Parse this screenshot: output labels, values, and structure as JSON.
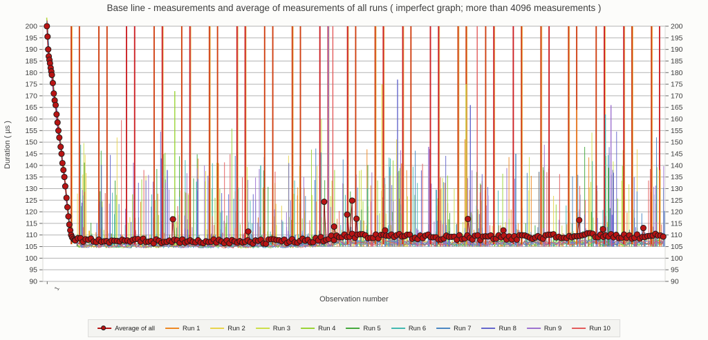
{
  "chart_data": {
    "type": "line",
    "title": "Base line - measurements and average of measurements of all runs ( imperfect graph; more than 4096 measurements )",
    "xlabel": "Observation number",
    "ylabel": "Duration ( µs )",
    "ylim": [
      90,
      200
    ],
    "ytick_step": 5,
    "yticks": [
      90,
      95,
      100,
      105,
      110,
      115,
      120,
      125,
      130,
      135,
      140,
      145,
      150,
      155,
      160,
      165,
      170,
      175,
      180,
      185,
      190,
      195,
      200
    ],
    "y_axis_sides": "both",
    "grid": "horizontal",
    "first_x_tick_label": "1",
    "legend_position": "bottom",
    "legend": [
      {
        "label": "Average of all",
        "color": "#b81414",
        "marker": "circle"
      },
      {
        "label": "Run 1",
        "color": "#ee8822"
      },
      {
        "label": "Run 2",
        "color": "#e8d44c"
      },
      {
        "label": "Run 3",
        "color": "#ccdf4a"
      },
      {
        "label": "Run 4",
        "color": "#99d435"
      },
      {
        "label": "Run 5",
        "color": "#44a83c"
      },
      {
        "label": "Run 6",
        "color": "#42b8b0"
      },
      {
        "label": "Run 7",
        "color": "#4a86c2"
      },
      {
        "label": "Run 8",
        "color": "#6466cc"
      },
      {
        "label": "Run 9",
        "color": "#9d72d0"
      },
      {
        "label": "Run 10",
        "color": "#e35b5b"
      }
    ],
    "average": {
      "color": "#b81414",
      "line_color": "#8d0f0f",
      "marker_stroke": "#1a1a1a",
      "descent": [
        [
          0.0065,
          200
        ],
        [
          0.0075,
          195.5
        ],
        [
          0.0085,
          190
        ],
        [
          0.0095,
          187
        ],
        [
          0.0105,
          185.5
        ],
        [
          0.0115,
          184
        ],
        [
          0.0125,
          182
        ],
        [
          0.0135,
          180.5
        ],
        [
          0.0145,
          179
        ],
        [
          0.016,
          175.5
        ],
        [
          0.0175,
          171
        ],
        [
          0.019,
          168
        ],
        [
          0.0205,
          166
        ],
        [
          0.022,
          162
        ],
        [
          0.0235,
          158.5
        ],
        [
          0.025,
          155
        ],
        [
          0.0265,
          152
        ],
        [
          0.0285,
          148
        ],
        [
          0.03,
          145
        ],
        [
          0.0315,
          141
        ],
        [
          0.033,
          138
        ],
        [
          0.0345,
          135
        ],
        [
          0.036,
          131
        ],
        [
          0.038,
          126
        ],
        [
          0.0395,
          122
        ],
        [
          0.041,
          118
        ],
        [
          0.0425,
          114.5
        ],
        [
          0.044,
          112
        ],
        [
          0.0455,
          110
        ],
        [
          0.047,
          109
        ],
        [
          0.049,
          108.3
        ],
        [
          0.051,
          107.8
        ]
      ],
      "baseline_trend": [
        [
          0.052,
          107.6
        ],
        [
          0.15,
          107.4
        ],
        [
          0.25,
          107.3
        ],
        [
          0.35,
          107.2
        ],
        [
          0.42,
          107.6
        ],
        [
          0.46,
          108.6
        ],
        [
          0.5,
          109.8
        ],
        [
          0.54,
          109.6
        ],
        [
          0.6,
          109.2
        ],
        [
          0.68,
          108.8
        ],
        [
          0.75,
          108.9
        ],
        [
          0.82,
          109.2
        ],
        [
          0.88,
          109.8
        ],
        [
          0.93,
          109.3
        ],
        [
          1.0,
          109.8
        ]
      ],
      "baseline_step": 0.0042,
      "baseline_jitter": 2.2,
      "bumps": [
        [
          0.209,
          116.8
        ],
        [
          0.33,
          111.5
        ],
        [
          0.452,
          124.3
        ],
        [
          0.468,
          113.6
        ],
        [
          0.489,
          118.8
        ],
        [
          0.497,
          124.8
        ],
        [
          0.504,
          117.0
        ],
        [
          0.55,
          112.0
        ],
        [
          0.683,
          116.9
        ],
        [
          0.74,
          112.0
        ],
        [
          0.862,
          116.4
        ],
        [
          0.9,
          112.5
        ],
        [
          0.965,
          113.0
        ]
      ]
    },
    "runs_noise": {
      "seed": 42,
      "x_start": 0.054,
      "baseline_min": 104.5,
      "baseline_max": 106.9,
      "baseline_step": 0.004,
      "spikes_per_run": 60,
      "spike_base": 110,
      "spike_range": 30,
      "spike_power": 3,
      "mid_spikes_per_run": 10,
      "mid_min": 126,
      "mid_range": 22,
      "high_spikes_per_run": 3,
      "high_min": 138,
      "high_range": 22,
      "descent_spread": 0.08
    },
    "tall_spikes": {
      "first": 0.0456,
      "period": 0.0444,
      "pair_gap": 0.0131,
      "pairs": 22,
      "top_value": 200,
      "base_value": 106,
      "color_a": "#d04012",
      "color_b": "#cc2024",
      "edge_color": "#e9b44a"
    },
    "notable_spikes": [
      {
        "x": 0.212,
        "run": 4,
        "value": 172
      },
      {
        "x": 0.19,
        "run": 8,
        "value": 143
      },
      {
        "x": 0.2,
        "run": 8,
        "value": 138
      },
      {
        "x": 0.247,
        "run": 6,
        "value": 133
      },
      {
        "x": 0.35,
        "run": 6,
        "value": 140
      },
      {
        "x": 0.459,
        "run": 9,
        "value": 200,
        "full": true
      },
      {
        "x": 0.466,
        "run": 10,
        "value": 200,
        "full": true
      },
      {
        "x": 0.545,
        "run": 2,
        "value": 175
      },
      {
        "x": 0.57,
        "run": 8,
        "value": 177
      },
      {
        "x": 0.62,
        "run": 9,
        "value": 148
      },
      {
        "x": 0.68,
        "run": 3,
        "value": 175
      },
      {
        "x": 0.698,
        "run": 10,
        "value": 200,
        "full": true
      },
      {
        "x": 0.687,
        "run": 8,
        "value": 166
      },
      {
        "x": 0.76,
        "run": 7,
        "value": 145
      },
      {
        "x": 0.858,
        "run": 1,
        "value": 164
      },
      {
        "x": 0.904,
        "run": 6,
        "value": 162
      },
      {
        "x": 0.909,
        "run": 5,
        "value": 139
      },
      {
        "x": 0.913,
        "run": 9,
        "value": 166
      },
      {
        "x": 0.991,
        "run": 1,
        "value": 138
      }
    ],
    "colors": {
      "gridline": "#b3b3b3",
      "axis_edge": "#d8d8d6",
      "tick": "#666666",
      "tick_label": "#3e3e3e",
      "plot_background": "#ffffff"
    }
  }
}
